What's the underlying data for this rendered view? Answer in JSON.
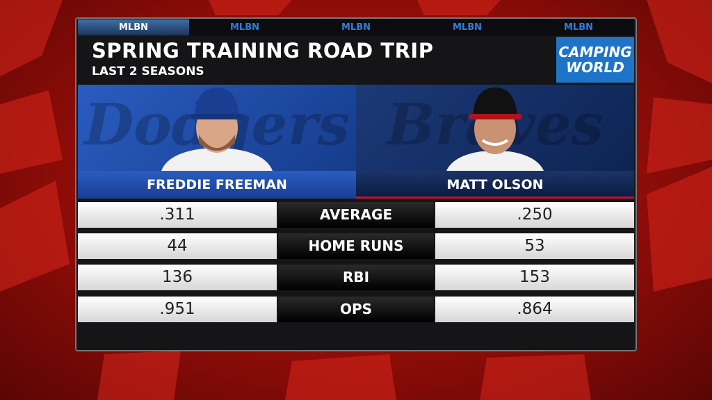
{
  "tabs": [
    "MLBN",
    "MLBN",
    "MLBN",
    "MLBN",
    "MLBN"
  ],
  "header": {
    "title": "SPRING TRAINING ROAD TRIP",
    "subtitle": "LAST 2 SEASONS",
    "sponsor": [
      "CAMPING",
      "WORLD"
    ]
  },
  "players": [
    {
      "name": "FREDDIE FREEMAN",
      "team_script": "Dodgers"
    },
    {
      "name": "MATT OLSON",
      "team_script": "Braves"
    }
  ],
  "stats": [
    {
      "label": "AVERAGE",
      "left": ".311",
      "right": ".250"
    },
    {
      "label": "HOME RUNS",
      "left": "44",
      "right": "53"
    },
    {
      "label": "RBI",
      "left": "136",
      "right": "153"
    },
    {
      "label": "OPS",
      "left": ".951",
      "right": ".864"
    }
  ]
}
